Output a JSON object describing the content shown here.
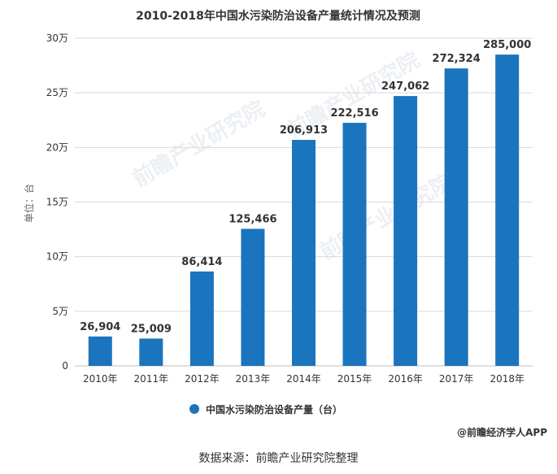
{
  "chart_data": {
    "type": "bar",
    "title": "2010-2018年中国水污染防治设备产量统计情况及预测",
    "ylabel": "单位：台",
    "ylim": [
      0,
      300000
    ],
    "yticks": [
      0,
      50000,
      100000,
      150000,
      200000,
      250000,
      300000
    ],
    "ytick_labels": [
      "0",
      "5万",
      "10万",
      "15万",
      "20万",
      "25万",
      "30万"
    ],
    "categories": [
      "2010年",
      "2011年",
      "2012年",
      "2013年",
      "2014年",
      "2015年",
      "2016年",
      "2017年",
      "2018年"
    ],
    "series": [
      {
        "name": "中国水污染防治设备产量（台）",
        "values": [
          26904,
          25009,
          86414,
          125466,
          206913,
          222516,
          247062,
          272324,
          285000
        ],
        "labels": [
          "26,904",
          "25,009",
          "86,414",
          "125,466",
          "206,913",
          "222,516",
          "247,062",
          "272,324",
          "285,000"
        ]
      }
    ],
    "colors": {
      "bar": "#1a74be",
      "grid": "#d9d9d9"
    },
    "grid": true,
    "legend": "bottom-center"
  },
  "watermark": "前瞻产业研究院",
  "credit": "@前瞻经济学人APP",
  "source": "数据来源：前瞻产业研究院整理"
}
